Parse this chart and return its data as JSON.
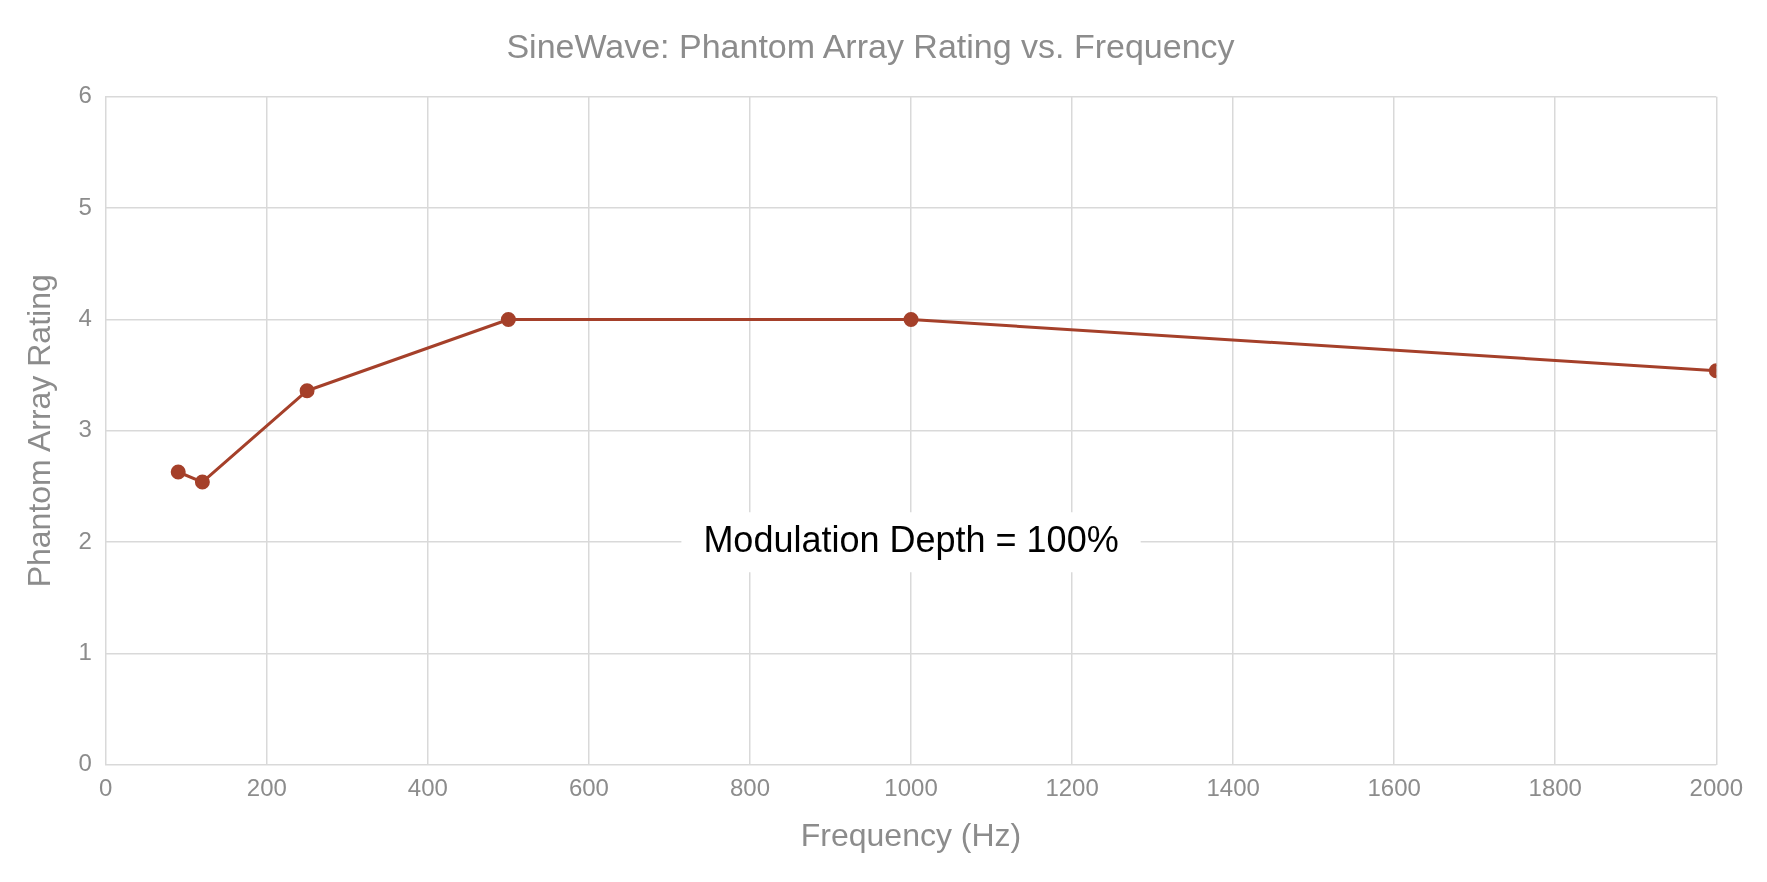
{
  "chart_data": {
    "type": "line",
    "title": "SineWave: Phantom Array Rating vs. Frequency",
    "xlabel": "Frequency (Hz)",
    "ylabel": "Phantom Array Rating",
    "x": [
      90,
      120,
      250,
      500,
      1000,
      2000
    ],
    "series": [
      {
        "color": "#a5402a",
        "values": [
          2.63,
          2.54,
          3.36,
          4.0,
          4.0,
          3.54
        ]
      }
    ],
    "xlim": [
      0,
      2000
    ],
    "xticks": [
      0,
      200,
      400,
      600,
      800,
      1000,
      1200,
      1400,
      1600,
      1800,
      2000
    ],
    "ylim": [
      0,
      6
    ],
    "yticks": [
      0,
      1,
      2,
      3,
      4,
      5,
      6
    ],
    "grid": true,
    "marker": "circle",
    "line_style": "solid",
    "annotations": [
      "Modulation Depth = 100%"
    ]
  }
}
